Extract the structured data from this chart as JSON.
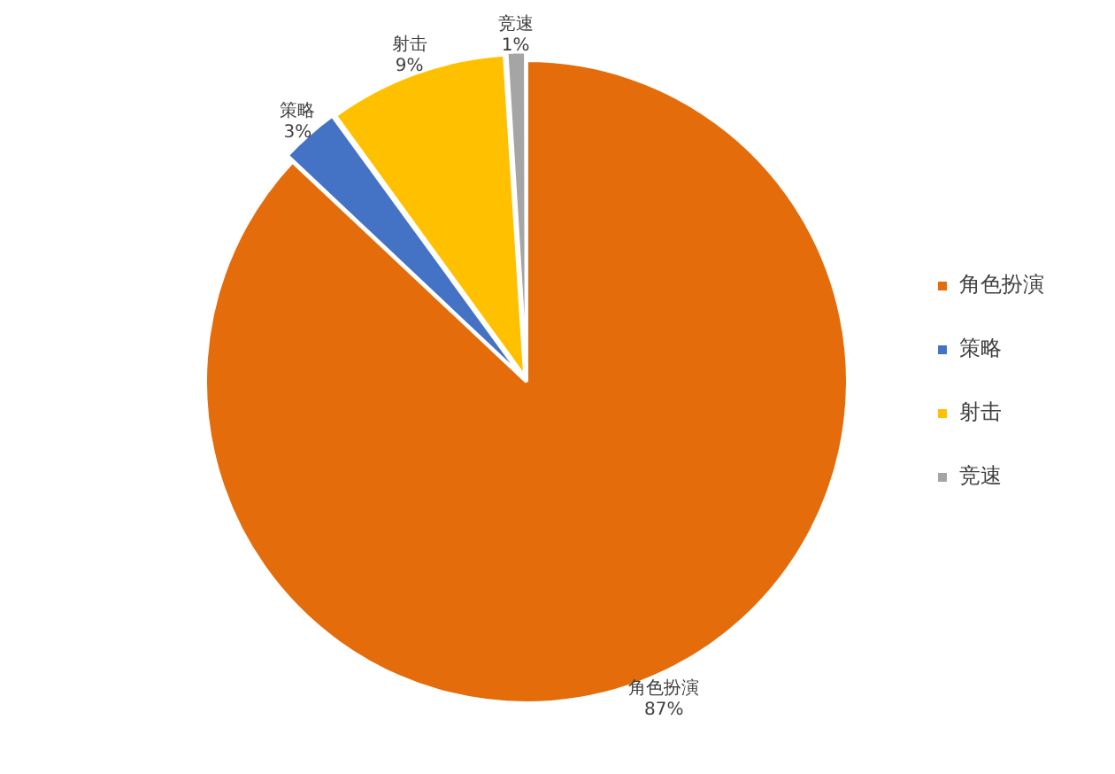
{
  "chart_data": {
    "type": "pie",
    "categories": [
      "角色扮演",
      "策略",
      "射击",
      "竞速"
    ],
    "values": [
      87,
      3,
      9,
      1
    ],
    "value_labels": [
      "87%",
      "3%",
      "9%",
      "1%"
    ],
    "colors": [
      "#e46c0a",
      "#4472c4",
      "#ffc000",
      "#a5a5a5"
    ],
    "legend": "right"
  }
}
